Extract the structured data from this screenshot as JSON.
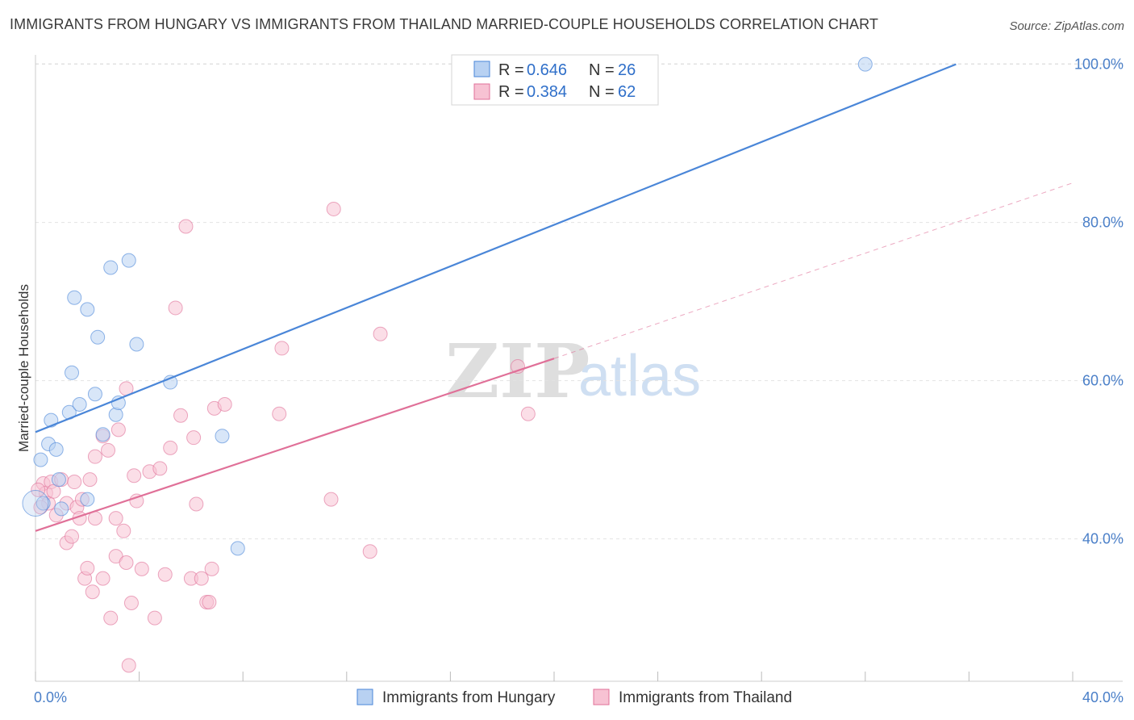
{
  "title": "IMMIGRANTS FROM HUNGARY VS IMMIGRANTS FROM THAILAND MARRIED-COUPLE HOUSEHOLDS CORRELATION CHART",
  "source": "Source: ZipAtlas.com",
  "watermark": {
    "zip": "ZIP",
    "atlas": "atlas"
  },
  "colors": {
    "hungary": "#4a86d8",
    "hungary_fill": "#b8d1f2",
    "thailand": "#e07098",
    "thailand_fill": "#f7c2d3",
    "tick_label": "#4a7fc8",
    "grid": "#e2e2e2"
  },
  "legend": {
    "rows": [
      {
        "r_label": "R = ",
        "r_value": "0.646",
        "n_label": "N = ",
        "n_value": "26"
      },
      {
        "r_label": "R = ",
        "r_value": "0.384",
        "n_label": "N = ",
        "n_value": "62"
      }
    ]
  },
  "chart_data": {
    "type": "scatter",
    "ylabel": "Married-couple Households",
    "xlim": [
      0,
      40
    ],
    "ylim": [
      22,
      102
    ],
    "x_ticks": [
      {
        "value": 0,
        "label": "0.0%"
      },
      {
        "value": 40,
        "label": "40.0%"
      }
    ],
    "y_ticks": [
      {
        "value": 40,
        "label": "40.0%"
      },
      {
        "value": 60,
        "label": "60.0%"
      },
      {
        "value": 80,
        "label": "80.0%"
      },
      {
        "value": 100,
        "label": "100.0%"
      }
    ],
    "grid": true,
    "legend_position": "top-center",
    "series": [
      {
        "name": "Immigrants from Hungary",
        "R": 0.646,
        "N": 26,
        "trend": {
          "x0": 0,
          "y0": 53.5,
          "x1": 35.5,
          "y1": 100.0
        },
        "points": [
          [
            0.3,
            44.5
          ],
          [
            0.2,
            50.0
          ],
          [
            0.5,
            52.0
          ],
          [
            0.8,
            51.3
          ],
          [
            0.6,
            55.0
          ],
          [
            0.9,
            47.5
          ],
          [
            1.0,
            43.8
          ],
          [
            1.3,
            56.0
          ],
          [
            1.4,
            61.0
          ],
          [
            1.7,
            57.0
          ],
          [
            2.0,
            69.0
          ],
          [
            1.5,
            70.5
          ],
          [
            2.0,
            45.0
          ],
          [
            2.3,
            58.3
          ],
          [
            2.4,
            65.5
          ],
          [
            2.6,
            53.2
          ],
          [
            2.9,
            74.3
          ],
          [
            3.1,
            55.7
          ],
          [
            3.2,
            57.2
          ],
          [
            3.6,
            75.2
          ],
          [
            3.9,
            64.6
          ],
          [
            5.2,
            59.8
          ],
          [
            7.2,
            53.0
          ],
          [
            7.8,
            38.8
          ],
          [
            32.0,
            100.0
          ],
          [
            0.0,
            44.5
          ]
        ]
      },
      {
        "name": "Immigrants from Thailand",
        "R": 0.384,
        "N": 62,
        "trend": {
          "x0": 0,
          "y0": 41.0,
          "x1": 20.0,
          "y1": 62.8
        },
        "trend_ext": {
          "x0": 20.0,
          "y0": 62.8,
          "x1": 40.0,
          "y1": 85.0
        },
        "points": [
          [
            0.3,
            47.0
          ],
          [
            0.4,
            45.8
          ],
          [
            0.5,
            44.5
          ],
          [
            0.6,
            47.2
          ],
          [
            0.7,
            46.0
          ],
          [
            0.8,
            43.0
          ],
          [
            1.0,
            47.5
          ],
          [
            1.2,
            44.5
          ],
          [
            1.2,
            39.5
          ],
          [
            1.4,
            40.3
          ],
          [
            1.5,
            47.2
          ],
          [
            1.6,
            44.0
          ],
          [
            1.7,
            42.6
          ],
          [
            1.8,
            45.0
          ],
          [
            1.9,
            35.0
          ],
          [
            2.0,
            36.3
          ],
          [
            2.1,
            47.5
          ],
          [
            2.2,
            33.3
          ],
          [
            2.3,
            42.6
          ],
          [
            2.3,
            50.4
          ],
          [
            2.6,
            35.0
          ],
          [
            2.6,
            53.0
          ],
          [
            2.8,
            51.2
          ],
          [
            2.9,
            30.0
          ],
          [
            3.1,
            42.6
          ],
          [
            3.1,
            37.8
          ],
          [
            3.2,
            53.8
          ],
          [
            3.4,
            41.0
          ],
          [
            3.5,
            59.0
          ],
          [
            3.5,
            37.0
          ],
          [
            3.7,
            31.9
          ],
          [
            3.8,
            48.0
          ],
          [
            3.9,
            44.8
          ],
          [
            4.1,
            36.2
          ],
          [
            4.4,
            48.5
          ],
          [
            4.6,
            30.0
          ],
          [
            4.8,
            48.9
          ],
          [
            5.0,
            35.5
          ],
          [
            5.2,
            51.5
          ],
          [
            5.4,
            69.2
          ],
          [
            5.6,
            55.6
          ],
          [
            5.8,
            79.5
          ],
          [
            6.0,
            35.0
          ],
          [
            6.1,
            52.8
          ],
          [
            6.2,
            44.4
          ],
          [
            6.4,
            35.0
          ],
          [
            6.6,
            32.0
          ],
          [
            6.7,
            32.0
          ],
          [
            6.8,
            36.2
          ],
          [
            6.9,
            56.5
          ],
          [
            7.3,
            57.0
          ],
          [
            9.4,
            55.8
          ],
          [
            9.5,
            64.1
          ],
          [
            11.4,
            45.0
          ],
          [
            11.5,
            81.7
          ],
          [
            12.9,
            38.4
          ],
          [
            13.3,
            65.9
          ],
          [
            18.6,
            61.8
          ],
          [
            19.0,
            55.8
          ],
          [
            3.6,
            24.0
          ],
          [
            0.1,
            46.2
          ],
          [
            0.2,
            44.0
          ]
        ]
      }
    ]
  }
}
